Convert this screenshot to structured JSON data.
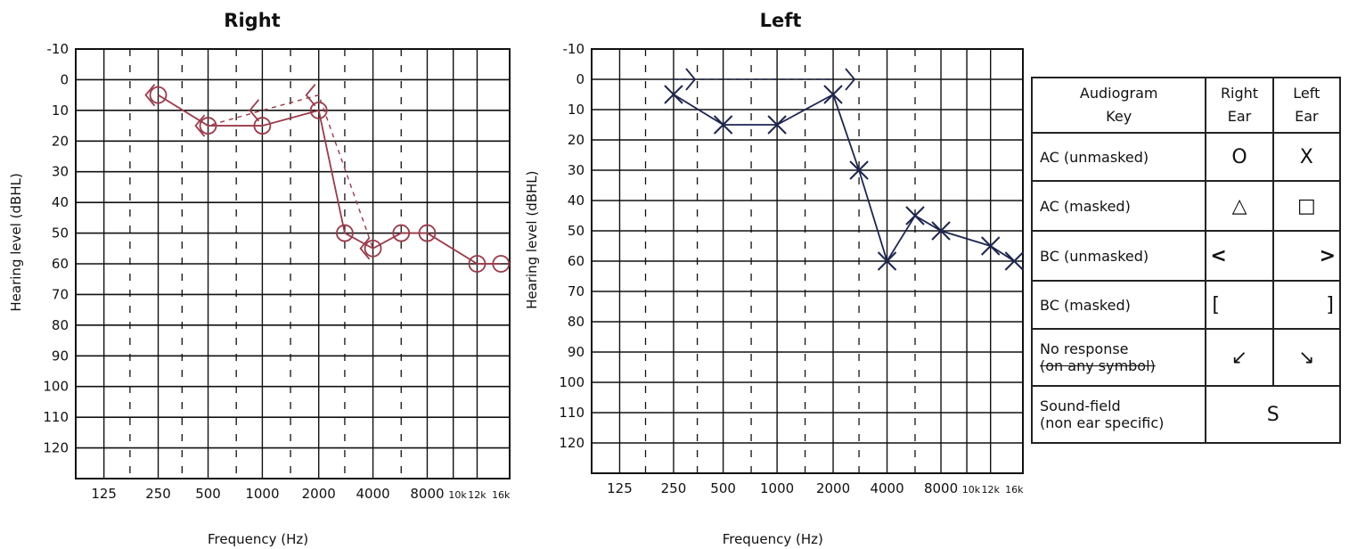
{
  "charts": [
    {
      "id": "right",
      "title": "Right",
      "ylabel": "Hearing level (dBHL)",
      "xlabel": "Frequency (Hz)",
      "color": "#9b3a4a"
    },
    {
      "id": "left",
      "title": "Left",
      "ylabel": "Hearing level (dBHL)",
      "xlabel": "Frequency (Hz)",
      "color": "#1d2550"
    }
  ],
  "chart_data": [
    {
      "type": "line",
      "title": "Right",
      "xlabel": "Frequency (Hz)",
      "ylabel": "Hearing level (dBHL)",
      "x": [
        "125",
        "250",
        "500",
        "1000",
        "2000",
        "4000",
        "8000"
      ],
      "x_extra_ticks": [
        "10k",
        "12k",
        "16k"
      ],
      "ylim": [
        -10,
        120
      ],
      "y_inverted": true,
      "yticks": [
        -10,
        0,
        10,
        20,
        30,
        40,
        50,
        60,
        70,
        80,
        90,
        100,
        110,
        120
      ],
      "grid": true,
      "series": [
        {
          "name": "AC (unmasked)",
          "symbol": "O",
          "points": [
            {
              "x": "250",
              "y": 5
            },
            {
              "x": "500",
              "y": 15
            },
            {
              "x": "1000",
              "y": 15
            },
            {
              "x": "2000",
              "y": 10
            },
            {
              "x": "3000",
              "y": 50
            },
            {
              "x": "4000",
              "y": 55
            },
            {
              "x": "6000",
              "y": 50
            },
            {
              "x": "8000",
              "y": 50
            },
            {
              "x": "12k",
              "y": 60
            },
            {
              "x": "16k",
              "y": 60
            }
          ]
        },
        {
          "name": "BC (unmasked)",
          "symbol": "<",
          "points": [
            {
              "x": "250",
              "y": 5
            },
            {
              "x": "500",
              "y": 15
            },
            {
              "x": "1000",
              "y": 10
            },
            {
              "x": "2000",
              "y": 5
            },
            {
              "x": "4000",
              "y": 55
            }
          ]
        }
      ]
    },
    {
      "type": "line",
      "title": "Left",
      "xlabel": "Frequency (Hz)",
      "ylabel": "Hearing level (dBHL)",
      "x": [
        "125",
        "250",
        "500",
        "1000",
        "2000",
        "4000",
        "8000"
      ],
      "x_extra_ticks": [
        "10k",
        "12k",
        "16k"
      ],
      "ylim": [
        -10,
        120
      ],
      "y_inverted": true,
      "yticks": [
        -10,
        0,
        10,
        20,
        30,
        40,
        50,
        60,
        70,
        80,
        90,
        100,
        110,
        120
      ],
      "grid": true,
      "series": [
        {
          "name": "AC (unmasked)",
          "symbol": "X",
          "points": [
            {
              "x": "250",
              "y": 5
            },
            {
              "x": "500",
              "y": 15
            },
            {
              "x": "1000",
              "y": 15
            },
            {
              "x": "2000",
              "y": 5
            },
            {
              "x": "3000",
              "y": 30
            },
            {
              "x": "4000",
              "y": 60
            },
            {
              "x": "6000",
              "y": 45
            },
            {
              "x": "8000",
              "y": 50
            },
            {
              "x": "12k",
              "y": 55
            },
            {
              "x": "16k",
              "y": 60
            }
          ]
        },
        {
          "name": "BC (unmasked)",
          "symbol": ">",
          "points": [
            {
              "x": "250",
              "y": 0
            },
            {
              "x": "2000",
              "y": 0
            }
          ]
        }
      ]
    }
  ],
  "key": {
    "header": "Audiogram Key",
    "col_right": "Right Ear",
    "col_left": "Left Ear",
    "rows": [
      {
        "label": "AC (unmasked)",
        "right": "O",
        "left": "X"
      },
      {
        "label": "AC (masked)",
        "right": "△",
        "left": "□"
      },
      {
        "label": "BC (unmasked)",
        "right": "<",
        "left": ">"
      },
      {
        "label": "BC (masked)",
        "right": "[",
        "left": "]"
      },
      {
        "label_line1": "No response",
        "label_line2": "(on any symbol)",
        "right": "↙",
        "left": "↘"
      },
      {
        "label_line1": "Sound-field",
        "label_line2": "(non ear specific)",
        "both": "S"
      }
    ]
  },
  "x_tick_labels": [
    "125",
    "250",
    "500",
    "1000",
    "2000",
    "4000",
    "8000",
    "10k",
    "12k",
    "16k"
  ],
  "right_x_tick_labels_printed": [
    "125",
    "250",
    "500",
    "1000",
    "2000",
    "4000",
    "8000",
    "10k",
    "12k",
    "16k"
  ]
}
